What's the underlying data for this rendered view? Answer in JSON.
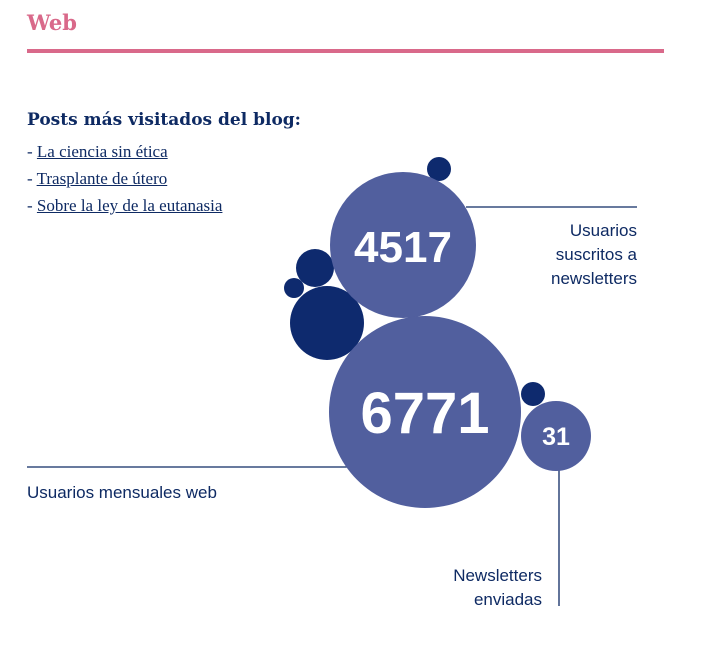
{
  "section": {
    "title": "Web"
  },
  "blog": {
    "heading": "Posts más visitados del blog:",
    "prefix": "- ",
    "posts": [
      "La ciencia sin ética",
      "Trasplante de útero",
      "Sobre la ley de la eutanasia"
    ]
  },
  "stats": {
    "subscribers": {
      "value": "4517",
      "label_lines": [
        "Usuarios",
        "suscritos a",
        "newsletters"
      ]
    },
    "monthly_users": {
      "value": "6771",
      "label": "Usuarios mensuales web"
    },
    "newsletters_sent": {
      "value": "31",
      "label_lines": [
        "Newsletters",
        "enviadas"
      ]
    }
  },
  "colors": {
    "accent_pink": "#d9698a",
    "bubble_light": "#515f9e",
    "bubble_dark": "#0e2a6e",
    "text_navy": "#0e2a63"
  }
}
